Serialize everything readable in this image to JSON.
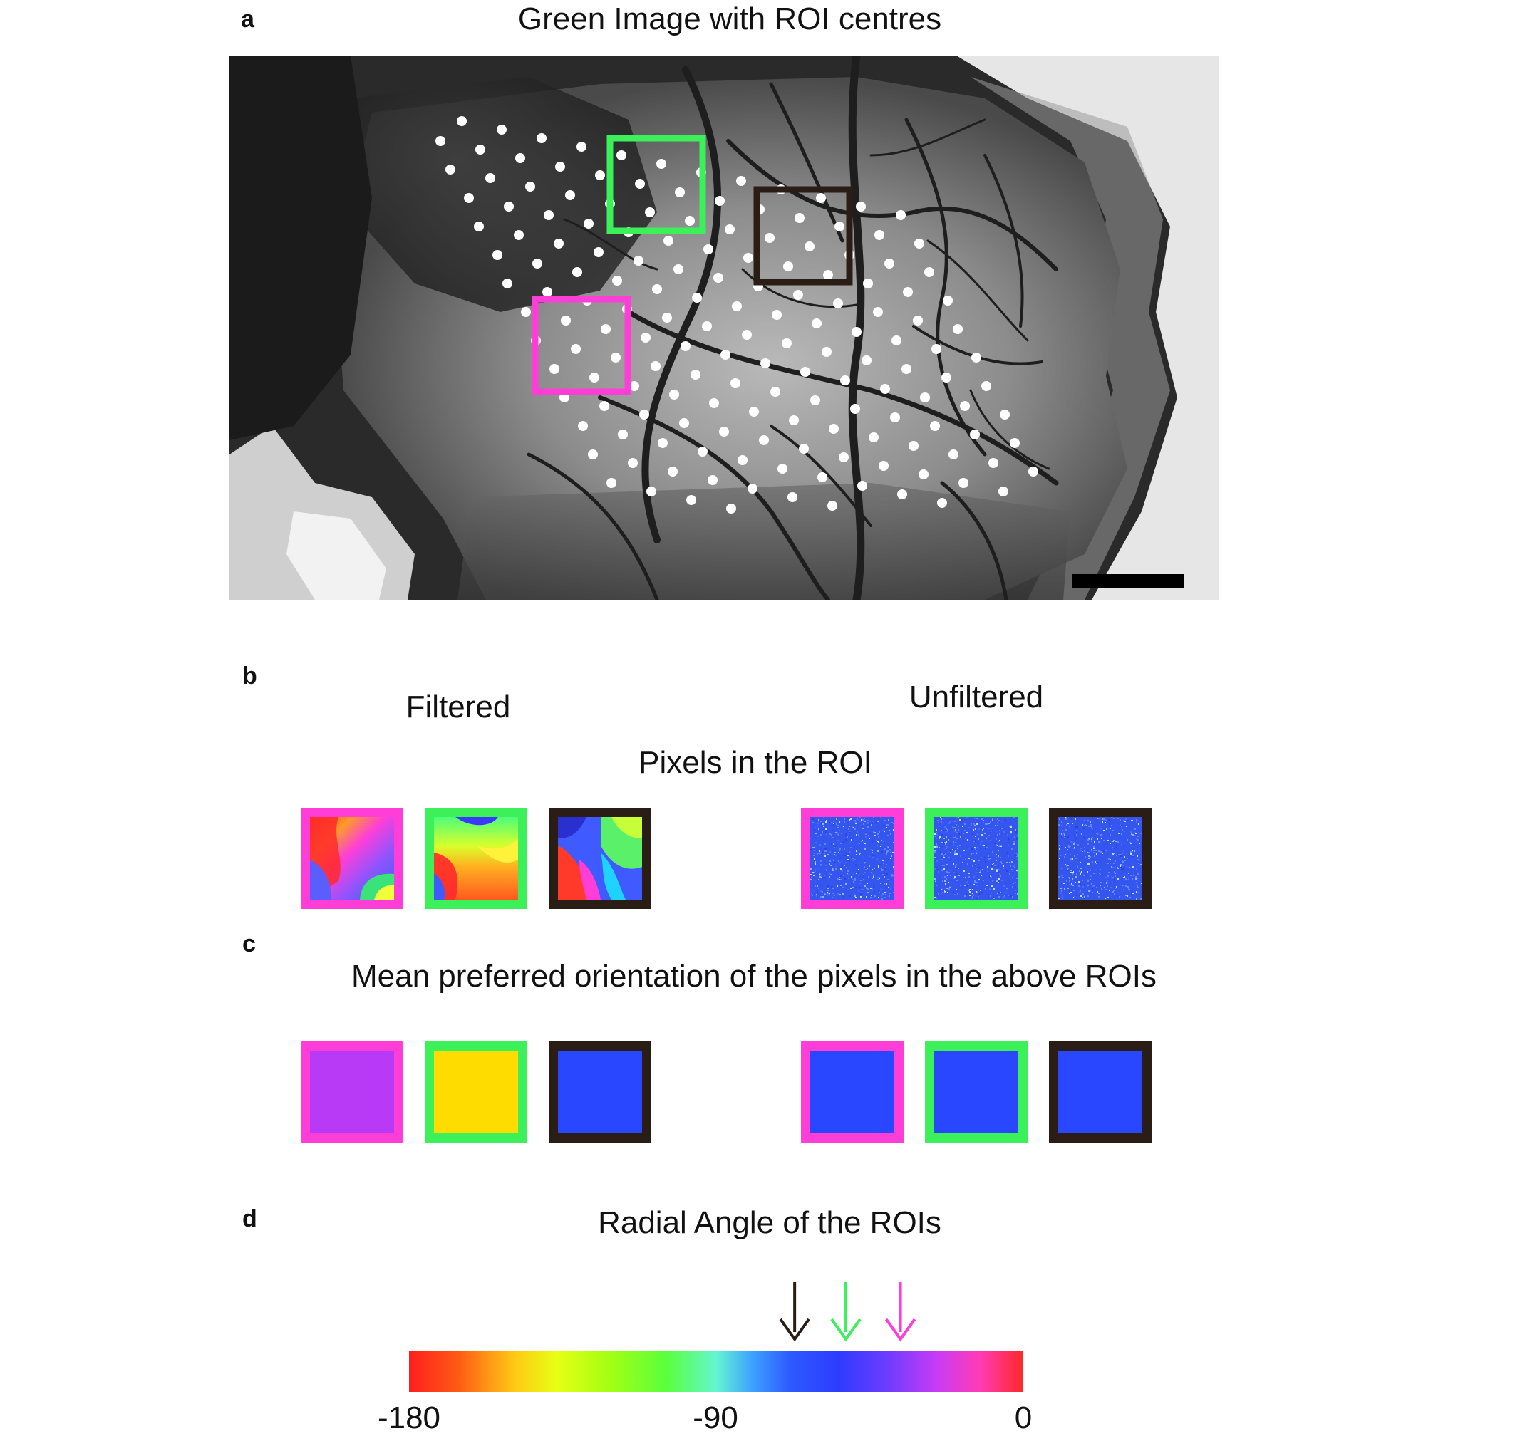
{
  "panels": {
    "a": {
      "letter": "a",
      "title": "Green Image with ROI centres",
      "roi_boxes": [
        {
          "name": "green-roi",
          "color": "#3cf05a"
        },
        {
          "name": "brown-roi",
          "color": "#2a1d16"
        },
        {
          "name": "magenta-roi",
          "color": "#ff3ed8"
        }
      ]
    },
    "b": {
      "letter": "b",
      "filtered_label": "Filtered",
      "unfiltered_label": "Unfiltered",
      "subtitle": "Pixels in the ROI"
    },
    "c": {
      "letter": "c",
      "title": "Mean preferred orientation of the pixels in the above ROIs",
      "filtered_means": [
        {
          "frame": "#ff3ed8",
          "fill": "#b93af6"
        },
        {
          "frame": "#3cf05a",
          "fill": "#ffdc00"
        },
        {
          "frame": "#2a1d16",
          "fill": "#2847ff"
        }
      ],
      "unfiltered_means": [
        {
          "frame": "#ff3ed8",
          "fill": "#2847ff"
        },
        {
          "frame": "#3cf05a",
          "fill": "#2847ff"
        },
        {
          "frame": "#2a1d16",
          "fill": "#2847ff"
        }
      ]
    },
    "d": {
      "letter": "d",
      "title": "Radial Angle of the ROIs",
      "colorbar": {
        "min": -180,
        "max": 0,
        "ticks": [
          "-180",
          "-90",
          "0"
        ]
      },
      "arrows": [
        {
          "name": "brown-arrow",
          "color": "#2a1d16",
          "value": -67
        },
        {
          "name": "green-arrow",
          "color": "#3cf05a",
          "value": -52
        },
        {
          "name": "magenta-arrow",
          "color": "#ff3ed8",
          "value": -36
        }
      ]
    }
  },
  "colors": {
    "magenta": "#ff3ed8",
    "green": "#3cf05a",
    "brown": "#2a1d16"
  }
}
